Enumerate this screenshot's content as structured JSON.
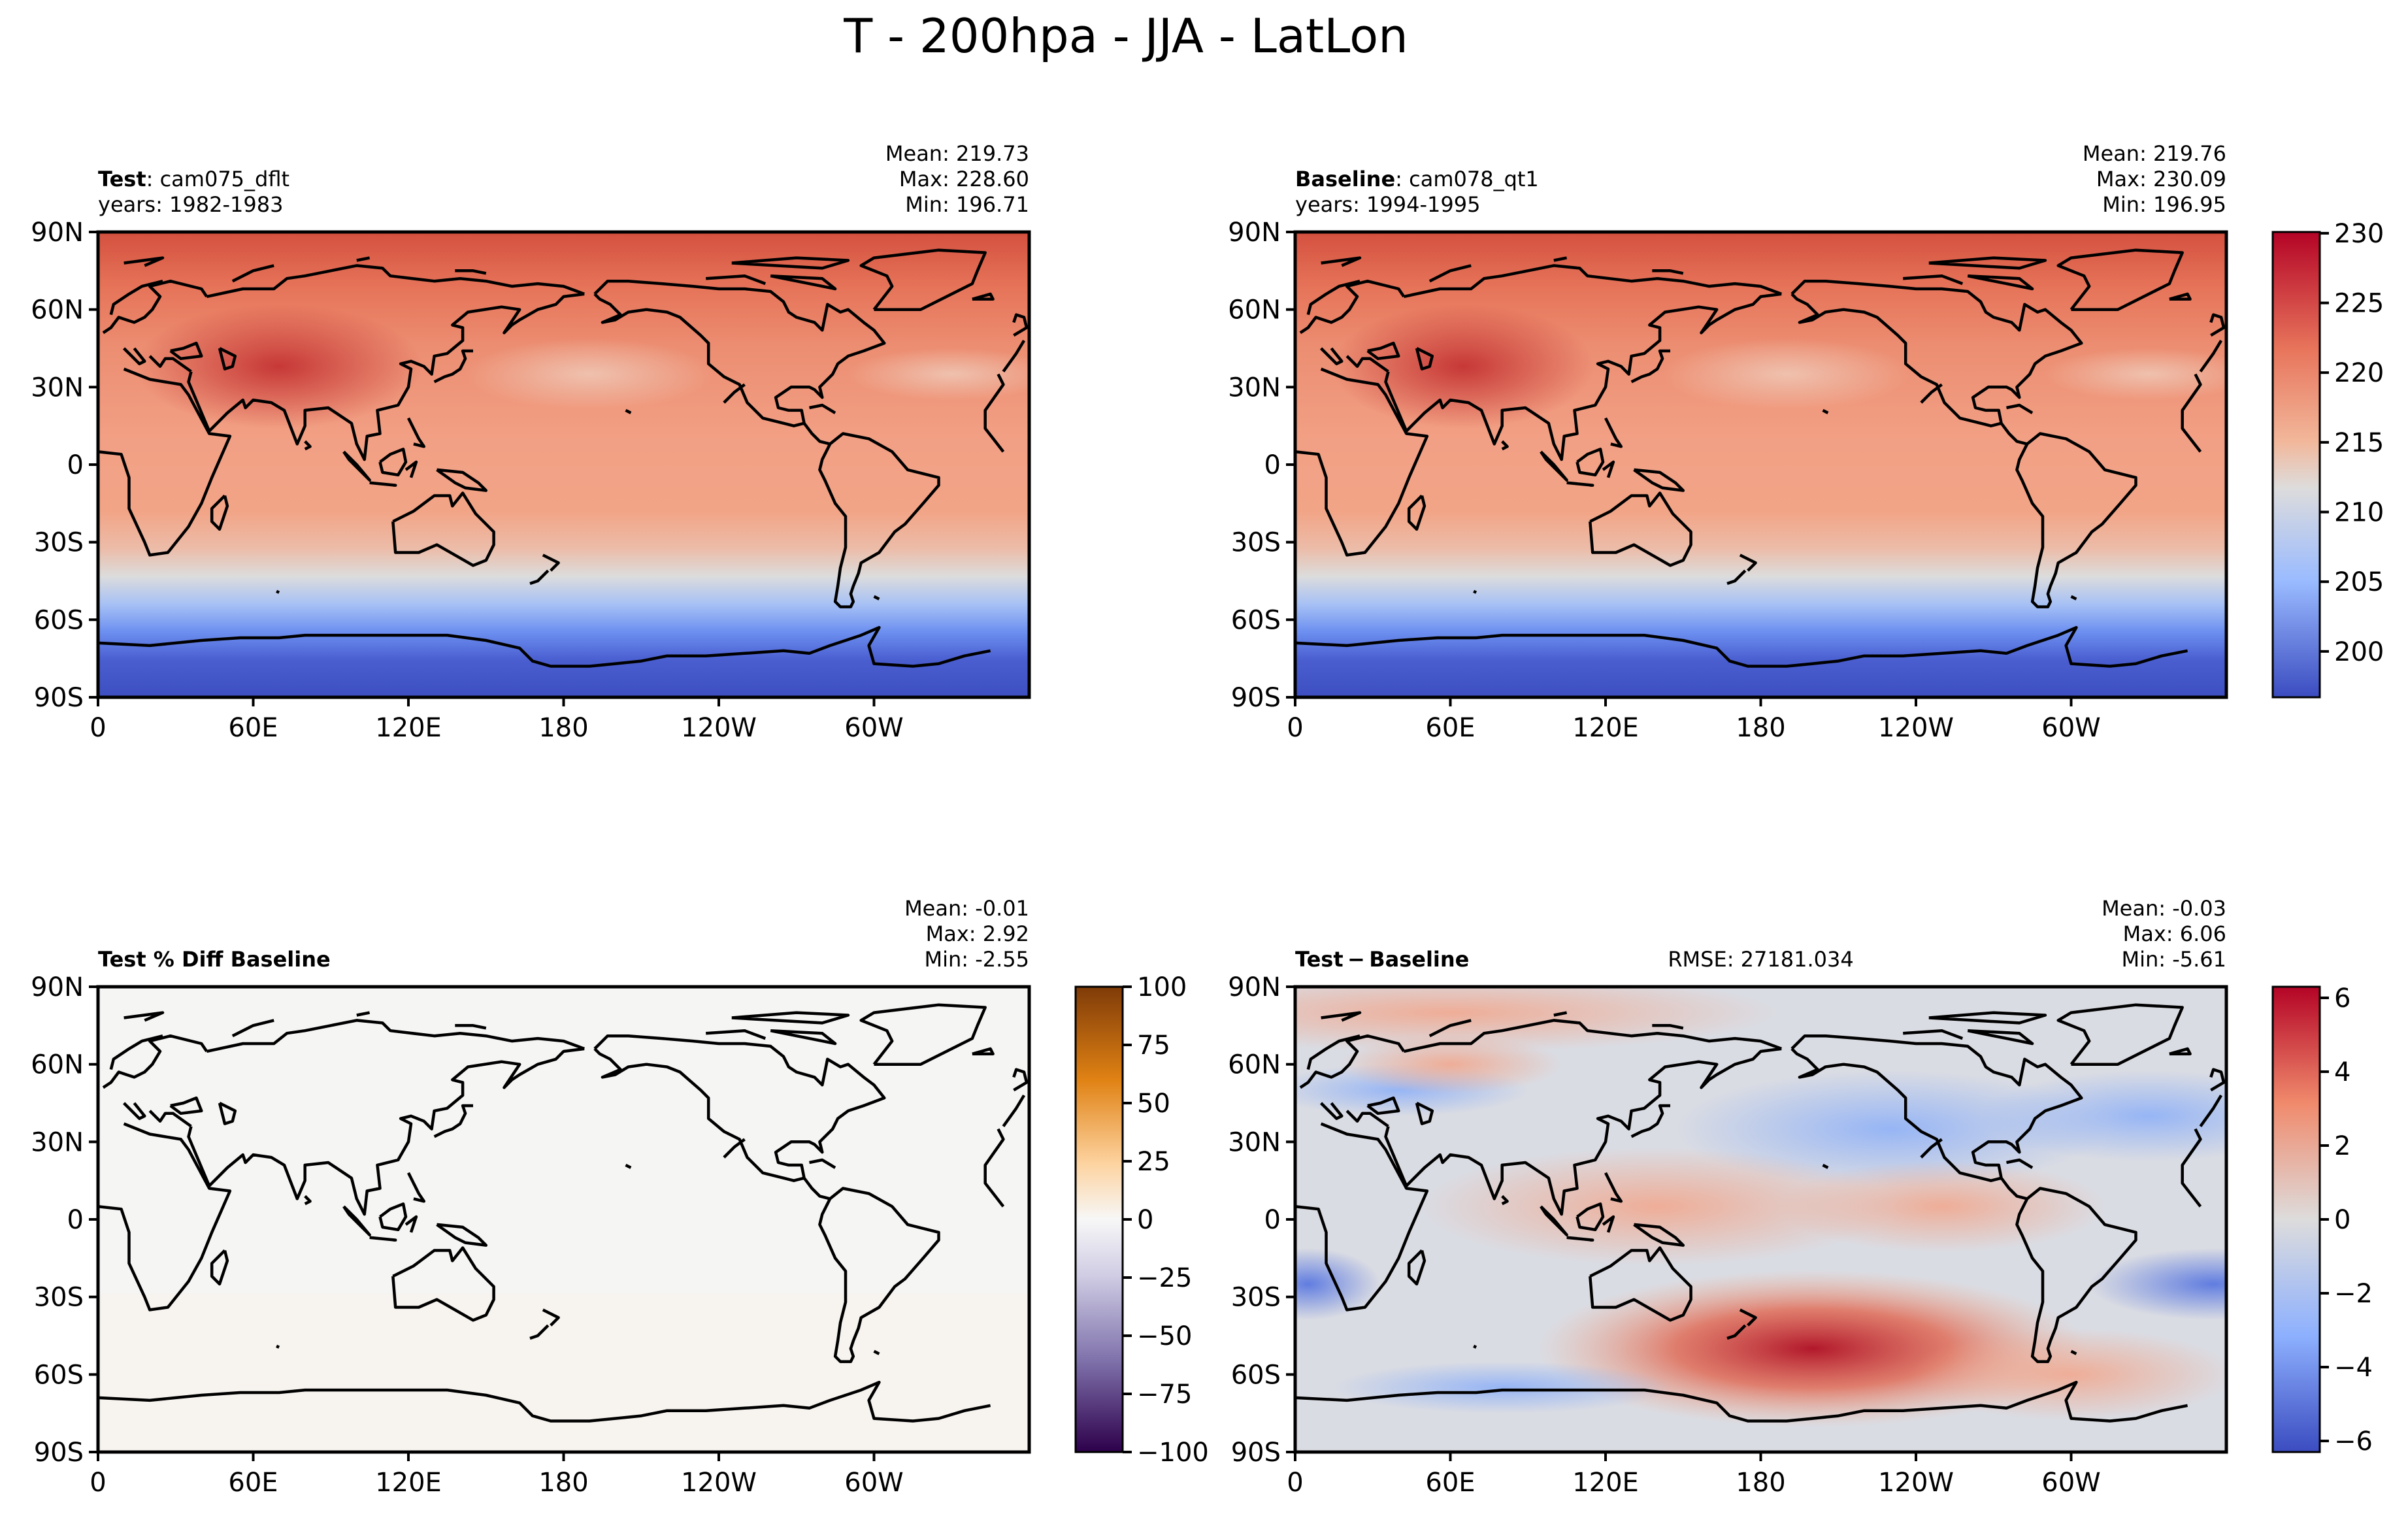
{
  "figure": {
    "title": "T - 200hpa - JJA - LatLon"
  },
  "chart_data": [
    {
      "type": "heatmap",
      "name": "test",
      "label_bold": "Test",
      "label_rest": ": cam075_dflt",
      "years": "years: 1982-1983",
      "stats": [
        "Mean: 219.73",
        "Max: 228.60",
        "Min: 196.71"
      ],
      "rmse": "",
      "x_ticks": [
        "0",
        "60E",
        "120E",
        "180",
        "120W",
        "60W"
      ],
      "y_ticks": [
        "90N",
        "60N",
        "30N",
        "0",
        "30S",
        "60S",
        "90S"
      ],
      "colormap": "coolwarm",
      "value_range": [
        196.71,
        228.6
      ],
      "colorbar": null
    },
    {
      "type": "heatmap",
      "name": "baseline",
      "label_bold": "Baseline",
      "label_rest": ": cam078_qt1",
      "years": "years: 1994-1995",
      "stats": [
        "Mean: 219.76",
        "Max: 230.09",
        "Min: 196.95"
      ],
      "rmse": "",
      "x_ticks": [
        "0",
        "60E",
        "120E",
        "180",
        "120W",
        "60W"
      ],
      "y_ticks": [
        "90N",
        "60N",
        "30N",
        "0",
        "30S",
        "60S",
        "90S"
      ],
      "colormap": "coolwarm",
      "value_range": [
        196.95,
        230.09
      ],
      "colorbar": {
        "ticks": [
          "230",
          "225",
          "220",
          "215",
          "210",
          "205",
          "200"
        ],
        "range": [
          196.71,
          230.09
        ]
      }
    },
    {
      "type": "heatmap",
      "name": "pct-diff",
      "label_bold": "Test % Diff Baseline",
      "label_rest": "",
      "years": "",
      "stats": [
        "Mean: -0.01",
        "Max:  2.92",
        "Min: -2.55"
      ],
      "rmse": "",
      "x_ticks": [
        "0",
        "60E",
        "120E",
        "180",
        "120W",
        "60W"
      ],
      "y_ticks": [
        "90N",
        "60N",
        "30N",
        "0",
        "30S",
        "60S",
        "90S"
      ],
      "colormap": "PuOr",
      "value_range": [
        -100,
        100
      ],
      "colorbar": {
        "ticks": [
          "100",
          "75",
          "50",
          "25",
          "0",
          "−25",
          "−50",
          "−75",
          "−100"
        ],
        "range": [
          -100,
          100
        ]
      }
    },
    {
      "type": "heatmap",
      "name": "diff",
      "label_bold": "Test − Baseline",
      "label_rest": "",
      "years": "",
      "stats": [
        "Mean: -0.03",
        "Max:  6.06",
        "Min: -5.61"
      ],
      "rmse": "RMSE: 27181.034",
      "x_ticks": [
        "0",
        "60E",
        "120E",
        "180",
        "120W",
        "60W"
      ],
      "y_ticks": [
        "90N",
        "60N",
        "30N",
        "0",
        "30S",
        "60S",
        "90S"
      ],
      "colormap": "coolwarm",
      "value_range": [
        -6.06,
        6.06
      ],
      "colorbar": {
        "ticks": [
          "6",
          "4",
          "2",
          "0",
          "−2",
          "−4",
          "−6"
        ],
        "range": [
          -6.3,
          6.3
        ]
      }
    }
  ]
}
